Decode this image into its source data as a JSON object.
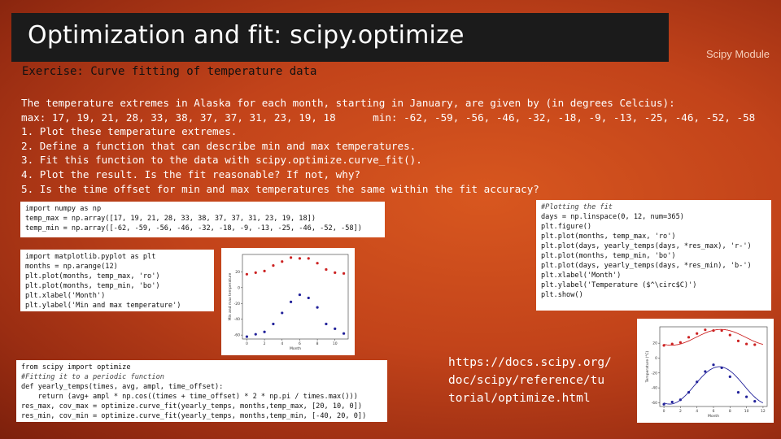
{
  "title": "Optimization and fit: scipy.optimize",
  "module_label": "Scipy Module",
  "subtitle": "Exercise: Curve fitting of temperature data",
  "body_lines": [
    "The temperature extremes in Alaska for each month, starting in January, are given by (in degrees Celcius):",
    "max: 17, 19, 21, 28, 33, 38, 37, 37, 31, 23, 19, 18      min: -62, -59, -56, -46, -32, -18, -9, -13, -25, -46, -52, -58",
    "1. Plot these temperature extremes.",
    "2. Define a function that can describe min and max temperatures.",
    "3. Fit this function to the data with scipy.optimize.curve_fit().",
    "4. Plot the result. Is the fit reasonable? If not, why?",
    "5. Is the time offset for min and max temperatures the same within the fit accuracy?"
  ],
  "code_block_1": [
    "import numpy as np",
    "temp_max = np.array([17, 19, 21, 28, 33, 38, 37, 37, 31, 23, 19, 18])",
    "temp_min = np.array([-62, -59, -56, -46, -32, -18, -9, -13, -25, -46, -52, -58])"
  ],
  "code_block_2": [
    "import matplotlib.pyplot as plt",
    "months = np.arange(12)",
    "plt.plot(months, temp_max, 'ro')",
    "plt.plot(months, temp_min, 'bo')",
    "plt.xlabel('Month')",
    "plt.ylabel('Min and max temperature')"
  ],
  "code_block_3": [
    "from scipy import optimize",
    "#Fitting it to a periodic function",
    "def yearly_temps(times, avg, ampl, time_offset):",
    "    return (avg+ ampl * np.cos((times + time_offset) * 2 * np.pi / times.max()))",
    "res_max, cov_max = optimize.curve_fit(yearly_temps, months,temp_max, [20, 10, 0])",
    "res_min, cov_min = optimize.curve_fit(yearly_temps, months,temp_min, [-40, 20, 0])"
  ],
  "code_block_4": [
    "#Plotting the fit",
    "days = np.linspace(0, 12, num=365)",
    "plt.figure()",
    "plt.plot(months, temp_max, 'ro')",
    "plt.plot(days, yearly_temps(days, *res_max), 'r-')",
    "plt.plot(months, temp_min, 'bo')",
    "plt.plot(days, yearly_temps(days, *res_min), 'b-')",
    "plt.xlabel('Month')",
    "plt.ylabel('Temperature ($^\\circ$C)')",
    "",
    "plt.show()"
  ],
  "url_lines": [
    "https://docs.scipy.org/",
    "doc/scipy/reference/tu",
    "torial/optimize.html"
  ],
  "plot1": {
    "xlabel": "Month",
    "ylabel": "Min and max temperature",
    "yticks": [
      "20",
      "0",
      "-20",
      "-40",
      "-60"
    ],
    "xticks": [
      "0",
      "2",
      "4",
      "6",
      "8",
      "10"
    ]
  },
  "plot2": {
    "xlabel": "Month",
    "ylabel": "Temperature (°C)",
    "yticks": [
      "20",
      "0",
      "-20",
      "-40",
      "-60"
    ],
    "xticks": [
      "0",
      "2",
      "4",
      "6",
      "8",
      "10",
      "12"
    ]
  },
  "chart_data": [
    {
      "type": "scatter",
      "xlabel": "Month",
      "ylabel": "Min and max temperature",
      "series": [
        {
          "x": [
            0,
            1,
            2,
            3,
            4,
            5,
            6,
            7,
            8,
            9,
            10,
            11
          ],
          "values": [
            17,
            19,
            21,
            28,
            33,
            38,
            37,
            37,
            31,
            23,
            19,
            18
          ],
          "color": "#cc2222"
        },
        {
          "x": [
            0,
            1,
            2,
            3,
            4,
            5,
            6,
            7,
            8,
            9,
            10,
            11
          ],
          "values": [
            -62,
            -59,
            -56,
            -46,
            -32,
            -18,
            -9,
            -13,
            -25,
            -46,
            -52,
            -58
          ],
          "color": "#22229a"
        }
      ],
      "ylim": [
        -65,
        42
      ],
      "xlim": [
        -0.5,
        11.5
      ]
    },
    {
      "type": "line",
      "xlabel": "Month",
      "ylabel": "Temperature (°C)",
      "series": [
        {
          "x": [
            0,
            1,
            2,
            3,
            4,
            5,
            6,
            7,
            8,
            9,
            10,
            11
          ],
          "values": [
            17,
            19,
            21,
            28,
            33,
            38,
            37,
            37,
            31,
            23,
            19,
            18
          ],
          "color": "#cc2222"
        },
        {
          "x": [
            0,
            1,
            2,
            3,
            4,
            5,
            6,
            7,
            8,
            9,
            10,
            11
          ],
          "values": [
            -62,
            -59,
            -56,
            -46,
            -32,
            -18,
            -9,
            -13,
            -25,
            -46,
            -52,
            -58
          ],
          "color": "#22229a"
        }
      ],
      "fits": [
        {
          "avg": 27.9,
          "ampl": -10.6,
          "time_offset": -0.9,
          "color": "#cc2222"
        },
        {
          "avg": -36.7,
          "ampl": -25.1,
          "time_offset": -0.7,
          "color": "#22229a"
        }
      ],
      "ylim": [
        -65,
        42
      ],
      "xlim": [
        -0.5,
        12.5
      ]
    }
  ]
}
